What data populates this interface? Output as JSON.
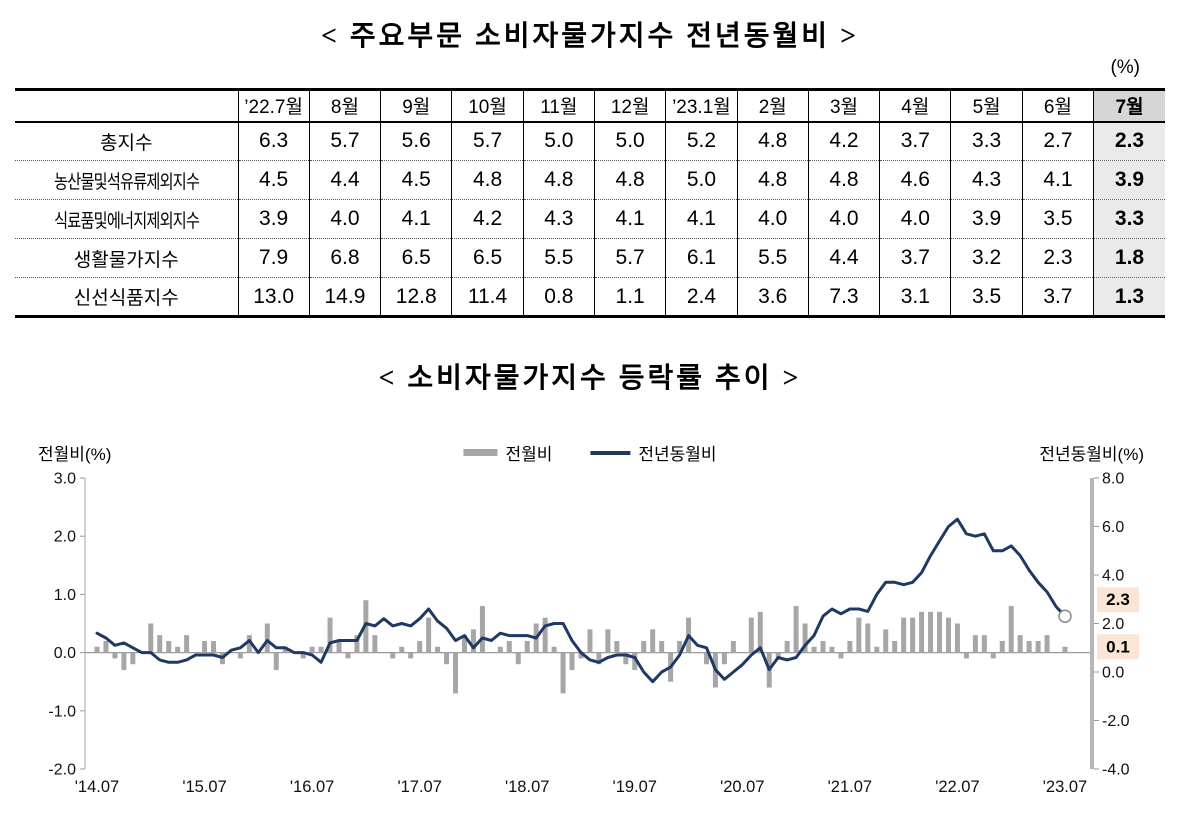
{
  "page": {
    "table_title": "< 주요부문 소비자물가지수 전년동월비 >",
    "unit_label": "(%)",
    "chart_title": "< 소비자물가지수 등락률 추이 >"
  },
  "table": {
    "columns": [
      "’22.7월",
      "8월",
      "9월",
      "10월",
      "11월",
      "12월",
      "’23.1월",
      "2월",
      "3월",
      "4월",
      "5월",
      "6월",
      "7월"
    ],
    "rows": [
      {
        "label": "총지수",
        "values": [
          "6.3",
          "5.7",
          "5.6",
          "5.7",
          "5.0",
          "5.0",
          "5.2",
          "4.8",
          "4.2",
          "3.7",
          "3.3",
          "2.7",
          "2.3"
        ]
      },
      {
        "label": "농산물및석유류제외지수",
        "values": [
          "4.5",
          "4.4",
          "4.5",
          "4.8",
          "4.8",
          "4.8",
          "5.0",
          "4.8",
          "4.8",
          "4.6",
          "4.3",
          "4.1",
          "3.9"
        ]
      },
      {
        "label": "식료품및에너지제외지수",
        "values": [
          "3.9",
          "4.0",
          "4.1",
          "4.2",
          "4.3",
          "4.1",
          "4.1",
          "4.0",
          "4.0",
          "4.0",
          "3.9",
          "3.5",
          "3.3"
        ]
      },
      {
        "label": "생활물가지수",
        "values": [
          "7.9",
          "6.8",
          "6.5",
          "6.5",
          "5.5",
          "5.7",
          "6.1",
          "5.5",
          "4.4",
          "3.7",
          "3.2",
          "2.3",
          "1.8"
        ]
      },
      {
        "label": "신선식품지수",
        "values": [
          "13.0",
          "14.9",
          "12.8",
          "11.4",
          "0.8",
          "1.1",
          "2.4",
          "3.6",
          "7.3",
          "3.1",
          "3.5",
          "3.7",
          "1.3"
        ]
      }
    ],
    "highlight": {
      "column": "7월",
      "header_bg": "#d6d6d6",
      "cell_bg": "#eaeaea"
    }
  },
  "chart_data": {
    "type": "bar+line",
    "title": "< 소비자물가지수 등락률 추이 >",
    "grid": false,
    "legend_position": "top-center",
    "end_marker": "open-circle",
    "x_ticks": [
      "'14.07",
      "'15.07",
      "'16.07",
      "'17.07",
      "'18.07",
      "'19.07",
      "'20.07",
      "'21.07",
      "'22.07",
      "'23.07"
    ],
    "x_tick_interval_months": 12,
    "left_axis": {
      "label": "전월비(%)",
      "min": -2.0,
      "max": 3.0,
      "tick_labels": [
        "3.0",
        "2.0",
        "1.0",
        "0.0",
        "-1.0",
        "-2.0"
      ]
    },
    "right_axis": {
      "label": "전년동월비(%)",
      "min": -4.0,
      "max": 8.0,
      "tick_labels": [
        "8.0",
        "6.0",
        "4.0",
        "2.0",
        "0.0",
        "-2.0",
        "-4.0"
      ]
    },
    "series": [
      {
        "name": "전월비",
        "type": "bar",
        "axis": "left",
        "color": "#a6a6a6",
        "values": [
          0.1,
          0.2,
          -0.1,
          -0.3,
          -0.2,
          0.0,
          0.5,
          0.3,
          0.2,
          0.1,
          0.3,
          0.0,
          0.2,
          0.2,
          -0.2,
          0.0,
          -0.1,
          0.3,
          0.0,
          0.5,
          -0.3,
          0.1,
          0.0,
          -0.1,
          0.1,
          0.1,
          0.6,
          0.2,
          -0.1,
          0.3,
          0.9,
          0.3,
          0.0,
          -0.1,
          0.1,
          -0.1,
          0.2,
          0.6,
          0.1,
          -0.2,
          -0.7,
          0.3,
          0.4,
          0.8,
          0.0,
          0.1,
          0.2,
          -0.2,
          0.2,
          0.5,
          0.6,
          0.1,
          -0.7,
          -0.3,
          -0.1,
          0.4,
          -0.2,
          0.4,
          0.2,
          -0.2,
          -0.3,
          0.2,
          0.4,
          0.2,
          -0.5,
          0.2,
          0.6,
          0.0,
          -0.2,
          -0.6,
          -0.2,
          0.2,
          0.0,
          0.6,
          0.7,
          -0.6,
          -0.1,
          0.2,
          0.8,
          0.5,
          0.1,
          0.2,
          0.1,
          -0.1,
          0.2,
          0.6,
          0.5,
          0.1,
          0.4,
          0.2,
          0.6,
          0.6,
          0.7,
          0.7,
          0.7,
          0.6,
          0.5,
          -0.1,
          0.3,
          0.3,
          -0.1,
          0.2,
          0.8,
          0.3,
          0.2,
          0.2,
          0.3,
          0.0,
          0.1
        ]
      },
      {
        "name": "전년동월비",
        "type": "line",
        "axis": "right",
        "color": "#1f3864",
        "values": [
          1.6,
          1.4,
          1.1,
          1.2,
          1.0,
          0.8,
          0.8,
          0.5,
          0.4,
          0.4,
          0.5,
          0.7,
          0.7,
          0.7,
          0.6,
          0.9,
          1.0,
          1.3,
          0.8,
          1.3,
          1.0,
          1.0,
          0.8,
          0.8,
          0.7,
          0.4,
          1.2,
          1.3,
          1.3,
          1.3,
          2.0,
          1.9,
          2.2,
          1.9,
          2.0,
          1.9,
          2.2,
          2.6,
          2.1,
          1.8,
          1.3,
          1.5,
          1.0,
          1.4,
          1.3,
          1.6,
          1.5,
          1.5,
          1.5,
          1.4,
          1.9,
          2.0,
          2.0,
          1.3,
          0.8,
          0.5,
          0.4,
          0.6,
          0.7,
          0.7,
          0.6,
          0.0,
          -0.4,
          0.0,
          0.2,
          0.7,
          1.5,
          1.1,
          1.0,
          0.1,
          -0.3,
          0.0,
          0.3,
          0.7,
          1.0,
          0.1,
          0.6,
          0.5,
          0.6,
          1.1,
          1.5,
          2.3,
          2.6,
          2.4,
          2.6,
          2.6,
          2.5,
          3.2,
          3.7,
          3.7,
          3.6,
          3.7,
          4.1,
          4.8,
          5.4,
          6.0,
          6.3,
          5.7,
          5.6,
          5.7,
          5.0,
          5.0,
          5.2,
          4.8,
          4.2,
          3.7,
          3.3,
          2.7,
          2.3
        ]
      }
    ],
    "annotations": [
      {
        "text": "2.3",
        "series": "전년동월비",
        "bg": "#fbe5d6"
      },
      {
        "text": "0.1",
        "series": "전월비",
        "bg": "#fbe5d6"
      }
    ]
  }
}
